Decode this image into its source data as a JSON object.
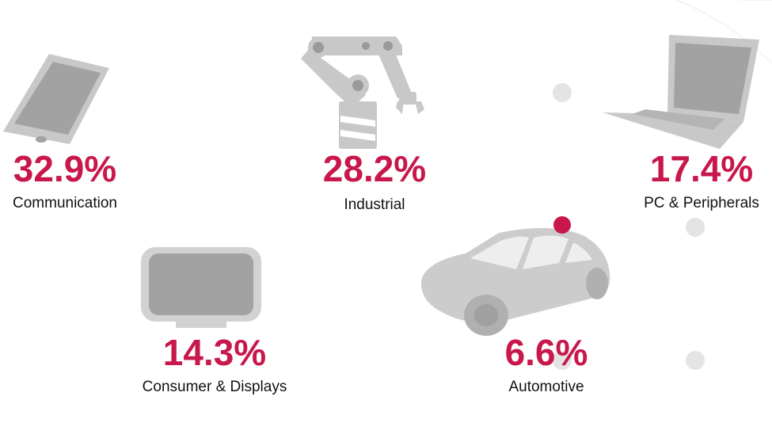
{
  "chart_data": {
    "type": "infographic",
    "unit": "%",
    "segments": [
      {
        "id": "communication",
        "value": "32.9%",
        "label": "Communication",
        "icon": "tablet-icon"
      },
      {
        "id": "industrial",
        "value": "28.2%",
        "label": "Industrial",
        "icon": "robot-arm-icon"
      },
      {
        "id": "pc",
        "value": "17.4%",
        "label": "PC & Peripherals",
        "icon": "laptop-icon"
      },
      {
        "id": "consumer",
        "value": "14.3%",
        "label": "Consumer & Displays",
        "icon": "monitor-icon"
      },
      {
        "id": "automotive",
        "value": "6.6%",
        "label": "Automotive",
        "icon": "car-icon"
      }
    ]
  },
  "colors": {
    "accent": "#c8174b",
    "icon_gray": "#c8c8c8",
    "icon_dark": "#9a9a9a",
    "dot_gray": "#e4e4e4",
    "text": "#111111"
  }
}
